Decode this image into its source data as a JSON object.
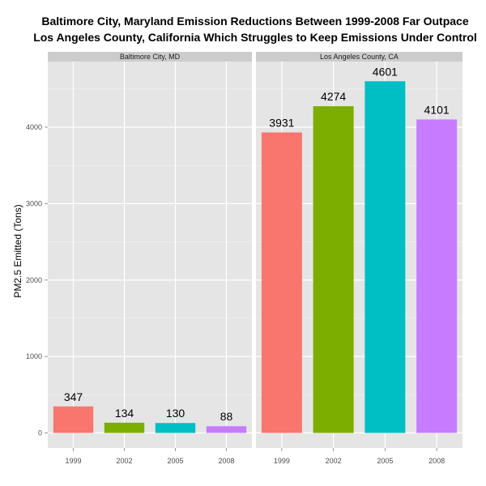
{
  "chart_data": {
    "type": "bar",
    "title_lines": [
      "Baltimore City, Maryland Emission Reductions Between 1999-2008 Far Outpace",
      "Los Angeles County, California Which Struggles to Keep Emissions Under Control"
    ],
    "xlabel": "",
    "ylabel": "PM2.5 Emitted (Tons)",
    "ylim": [
      0,
      4800
    ],
    "yticks": [
      0,
      1000,
      2000,
      3000,
      4000
    ],
    "categories": [
      "1999",
      "2002",
      "2005",
      "2008"
    ],
    "colors": [
      "#F8766D",
      "#7CAE00",
      "#00BFC4",
      "#C77CFF"
    ],
    "grid": true,
    "legend": "none",
    "panels": [
      {
        "name": "Baltimore City, MD",
        "values": [
          347,
          134,
          130,
          88
        ]
      },
      {
        "name": "Los Angeles County, CA",
        "values": [
          3931,
          4274,
          4601,
          4101
        ]
      }
    ]
  }
}
